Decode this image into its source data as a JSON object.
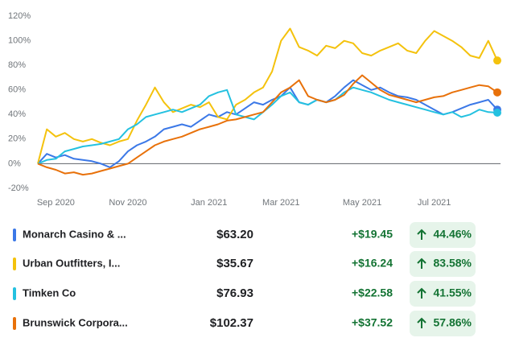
{
  "chart_data": {
    "type": "line",
    "categories": [
      null,
      null,
      "Sep 2020",
      null,
      null,
      null,
      null,
      null,
      null,
      null,
      "Nov 2020",
      null,
      null,
      null,
      null,
      null,
      null,
      null,
      null,
      "Jan 2021",
      null,
      null,
      null,
      null,
      null,
      null,
      null,
      "Mar 2021",
      null,
      null,
      null,
      null,
      null,
      null,
      null,
      null,
      "May 2021",
      null,
      null,
      null,
      null,
      null,
      null,
      null,
      "Jul 2021",
      null,
      null,
      null,
      null,
      null,
      null,
      null
    ],
    "series": [
      {
        "color": "#3b78e7",
        "values": [
          0,
          8,
          5,
          7,
          4,
          3,
          2,
          0,
          -3,
          2,
          10,
          15,
          18,
          22,
          28,
          30,
          32,
          30,
          35,
          40,
          38,
          42,
          40,
          45,
          50,
          48,
          52,
          55,
          62,
          50,
          48,
          52,
          50,
          55,
          62,
          68,
          64,
          60,
          62,
          58,
          55,
          54,
          52,
          48,
          44,
          40,
          42,
          45,
          48,
          50,
          52,
          44
        ]
      },
      {
        "color": "#f4c20d",
        "values": [
          0,
          28,
          22,
          25,
          20,
          18,
          20,
          17,
          15,
          18,
          20,
          35,
          48,
          62,
          50,
          42,
          45,
          48,
          46,
          50,
          38,
          36,
          48,
          52,
          58,
          62,
          75,
          100,
          110,
          95,
          92,
          88,
          96,
          94,
          100,
          98,
          90,
          88,
          92,
          95,
          98,
          92,
          90,
          100,
          108,
          104,
          100,
          95,
          88,
          86,
          100,
          84
        ]
      },
      {
        "color": "#24c1e0",
        "values": [
          0,
          3,
          4,
          10,
          12,
          14,
          15,
          16,
          18,
          20,
          28,
          32,
          38,
          40,
          42,
          44,
          42,
          45,
          48,
          55,
          58,
          60,
          40,
          38,
          36,
          42,
          48,
          55,
          58,
          50,
          48,
          52,
          50,
          52,
          58,
          62,
          60,
          58,
          55,
          52,
          50,
          48,
          46,
          44,
          42,
          40,
          42,
          38,
          40,
          44,
          42,
          41.5
        ]
      },
      {
        "color": "#e8710a",
        "values": [
          0,
          -3,
          -5,
          -8,
          -7,
          -9,
          -8,
          -6,
          -4,
          -2,
          0,
          5,
          10,
          15,
          18,
          20,
          22,
          25,
          28,
          30,
          32,
          35,
          36,
          38,
          40,
          42,
          50,
          58,
          62,
          68,
          55,
          52,
          50,
          52,
          56,
          65,
          72,
          66,
          60,
          56,
          54,
          52,
          50,
          52,
          54,
          55,
          58,
          60,
          62,
          64,
          63,
          58
        ]
      }
    ],
    "ylim": [
      -24,
      128
    ],
    "yticks": [
      {
        "value": 120,
        "label": "120%"
      },
      {
        "value": 100,
        "label": "100%"
      },
      {
        "value": 80,
        "label": "80%"
      },
      {
        "value": 60,
        "label": "60%"
      },
      {
        "value": 40,
        "label": "40%"
      },
      {
        "value": 20,
        "label": "20%"
      },
      {
        "value": 0,
        "label": "0%"
      },
      {
        "value": -20,
        "label": "-20%"
      }
    ],
    "grid": false
  },
  "table": {
    "rows": [
      [
        "Monarch Casino & ...",
        "$63.20",
        "+$19.45",
        "44.46%"
      ],
      [
        "Urban Outfitters, I...",
        "$35.67",
        "+$16.24",
        "83.58%"
      ],
      [
        "Timken Co",
        "$76.93",
        "+$22.58",
        "41.55%"
      ],
      [
        "Brunswick Corpora...",
        "$102.37",
        "+$37.52",
        "57.86%"
      ]
    ]
  }
}
